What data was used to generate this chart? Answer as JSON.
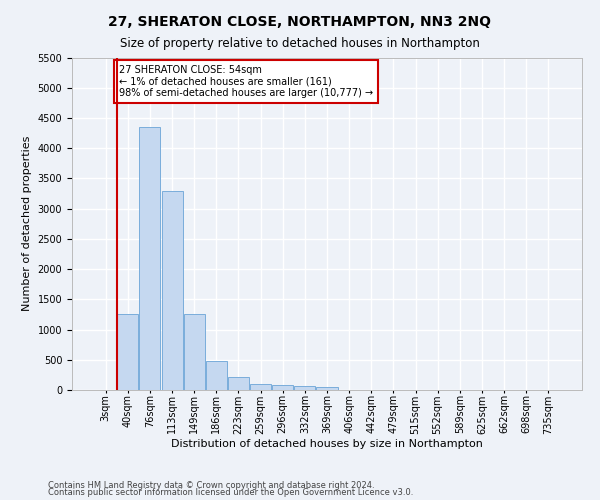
{
  "title": "27, SHERATON CLOSE, NORTHAMPTON, NN3 2NQ",
  "subtitle": "Size of property relative to detached houses in Northampton",
  "xlabel": "Distribution of detached houses by size in Northampton",
  "ylabel": "Number of detached properties",
  "categories": [
    "3sqm",
    "40sqm",
    "76sqm",
    "113sqm",
    "149sqm",
    "186sqm",
    "223sqm",
    "259sqm",
    "296sqm",
    "332sqm",
    "369sqm",
    "406sqm",
    "442sqm",
    "479sqm",
    "515sqm",
    "552sqm",
    "589sqm",
    "625sqm",
    "662sqm",
    "698sqm",
    "735sqm"
  ],
  "values": [
    0,
    1260,
    4350,
    3300,
    1260,
    480,
    210,
    100,
    75,
    60,
    50,
    0,
    0,
    0,
    0,
    0,
    0,
    0,
    0,
    0,
    0
  ],
  "bar_color": "#c5d8f0",
  "bar_edge_color": "#7aaddb",
  "vline_x": 0.5,
  "vline_color": "#cc0000",
  "annotation_text": "27 SHERATON CLOSE: 54sqm\n← 1% of detached houses are smaller (161)\n98% of semi-detached houses are larger (10,777) →",
  "annotation_box_color": "white",
  "annotation_box_edge": "#cc0000",
  "ylim": [
    0,
    5500
  ],
  "yticks": [
    0,
    500,
    1000,
    1500,
    2000,
    2500,
    3000,
    3500,
    4000,
    4500,
    5000,
    5500
  ],
  "footer1": "Contains HM Land Registry data © Crown copyright and database right 2024.",
  "footer2": "Contains public sector information licensed under the Open Government Licence v3.0.",
  "bg_color": "#eef2f8",
  "plot_bg_color": "#eef2f8",
  "grid_color": "white",
  "title_fontsize": 10,
  "subtitle_fontsize": 8.5,
  "label_fontsize": 8,
  "tick_fontsize": 7,
  "footer_fontsize": 6
}
